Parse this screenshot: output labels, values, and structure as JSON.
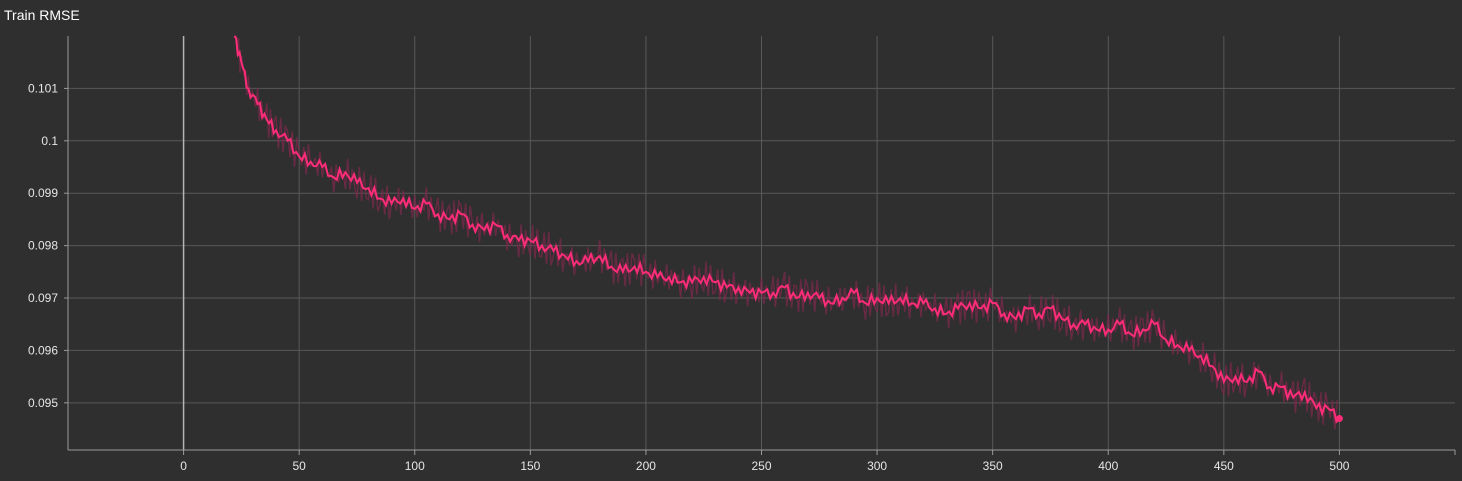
{
  "chart_data": {
    "type": "line",
    "title": "Train RMSE",
    "xlabel": "",
    "ylabel": "",
    "xlim": [
      -50,
      550
    ],
    "ylim": [
      0.0941,
      0.102
    ],
    "x_ticks": [
      0,
      50,
      100,
      150,
      200,
      250,
      300,
      350,
      400,
      450,
      500
    ],
    "y_ticks": [
      0.095,
      0.096,
      0.097,
      0.098,
      0.099,
      0.1,
      0.101
    ],
    "y_tick_labels": [
      "0.095",
      "0.096",
      "0.097",
      "0.098",
      "0.099",
      "0.1",
      "0.101"
    ],
    "grid": true,
    "color": "#ff2d78",
    "series": [
      {
        "x": [
          22,
          25,
          28,
          32,
          36,
          40,
          45,
          50,
          55,
          60,
          65,
          70,
          75,
          80,
          85,
          90,
          95,
          100,
          105,
          110,
          115,
          120,
          125,
          130,
          135,
          140,
          145,
          150,
          155,
          160,
          165,
          170,
          175,
          180,
          185,
          190,
          195,
          200,
          205,
          210,
          215,
          220,
          225,
          230,
          235,
          240,
          245,
          250,
          255,
          260,
          265,
          270,
          275,
          280,
          285,
          290,
          295,
          300,
          305,
          310,
          315,
          320,
          325,
          330,
          335,
          340,
          345,
          350,
          355,
          360,
          365,
          370,
          375,
          380,
          385,
          390,
          395,
          400,
          405,
          410,
          415,
          420,
          425,
          430,
          435,
          440,
          445,
          450,
          455,
          460,
          465,
          470,
          475,
          480,
          485,
          490,
          495,
          500
        ],
        "y": [
          0.102,
          0.1015,
          0.101,
          0.1007,
          0.1004,
          0.1002,
          0.1,
          0.0997,
          0.0996,
          0.0995,
          0.0993,
          0.0994,
          0.0992,
          0.0991,
          0.0989,
          0.0988,
          0.0989,
          0.0987,
          0.0988,
          0.0986,
          0.0985,
          0.0986,
          0.0984,
          0.0983,
          0.0984,
          0.0982,
          0.0981,
          0.0981,
          0.098,
          0.0979,
          0.0978,
          0.0977,
          0.0977,
          0.0978,
          0.0976,
          0.0975,
          0.0976,
          0.0975,
          0.0974,
          0.0974,
          0.0973,
          0.0973,
          0.0974,
          0.0973,
          0.0972,
          0.0972,
          0.0971,
          0.0971,
          0.0971,
          0.0972,
          0.097,
          0.0971,
          0.097,
          0.0969,
          0.097,
          0.0971,
          0.0969,
          0.097,
          0.0969,
          0.097,
          0.0969,
          0.0969,
          0.0968,
          0.0967,
          0.0968,
          0.0969,
          0.0968,
          0.0969,
          0.0967,
          0.0966,
          0.0968,
          0.0967,
          0.0968,
          0.0966,
          0.0965,
          0.0965,
          0.0964,
          0.0964,
          0.0965,
          0.0963,
          0.0964,
          0.0965,
          0.0962,
          0.0961,
          0.096,
          0.0959,
          0.0957,
          0.0954,
          0.0955,
          0.0954,
          0.0956,
          0.0953,
          0.0953,
          0.0951,
          0.0952,
          0.0949,
          0.0949,
          0.0947
        ]
      }
    ]
  }
}
